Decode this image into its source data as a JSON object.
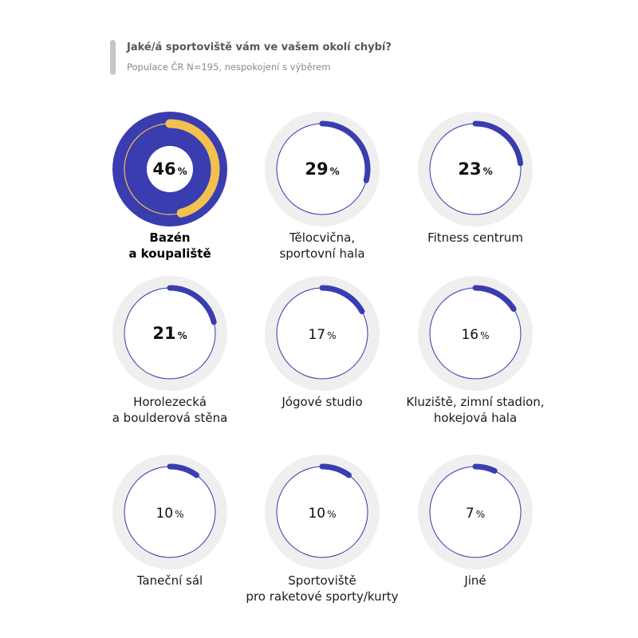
{
  "header": {
    "title": "Jaké/á sportoviště vám ve vašem okolí chybí?",
    "subtitle": "Populace ČR N=195, nespokojení s výběrem"
  },
  "colors": {
    "accent": "#3a3db0",
    "highlight": "#3a3db0",
    "highlight_arc": "#f2c14e",
    "track": "#efefef",
    "ring_line": "#3a3db0",
    "header_bar": "#c6c6c6"
  },
  "chart_data": {
    "type": "donut",
    "title": "Jaké/á sportoviště vám ve vašem okolí chybí?",
    "subtitle": "Populace ČR N=195, nespokojení s výběrem",
    "unit": "%",
    "items": [
      {
        "label": "Bazén\na koupaliště",
        "value": 46,
        "highlight": true
      },
      {
        "label": "Tělocvična,\nsportovní hala",
        "value": 29
      },
      {
        "label": "Fitness centrum",
        "value": 23
      },
      {
        "label": "Horolezecká\na boulderová stěna",
        "value": 21
      },
      {
        "label": "Jógové studio",
        "value": 17
      },
      {
        "label": "Kluziště, zimní stadion,\nhokejová hala",
        "value": 16
      },
      {
        "label": "Taneční sál",
        "value": 10
      },
      {
        "label": "Sportoviště\npro raketové sporty/kurty",
        "value": 10
      },
      {
        "label": "Jiné",
        "value": 7
      }
    ]
  }
}
